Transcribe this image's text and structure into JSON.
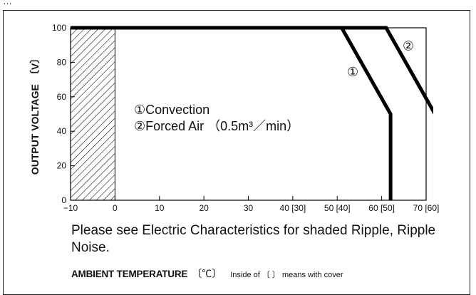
{
  "header_fragment": "…",
  "chart_data": {
    "type": "line",
    "ylabel": "OUTPUT VOLTAGE",
    "ylabel_unit": "〔V〕",
    "xlabel": "AMBIENT TEMPERATURE",
    "xlabel_unit": "〔℃〕",
    "xlabel_note": "Inside of 〔 〕 means with cover",
    "xlim": [
      -10,
      70
    ],
    "ylim": [
      0,
      100
    ],
    "grid": false,
    "x_tick_labels": [
      {
        "x": -10,
        "label": "−10"
      },
      {
        "x": 0,
        "label": "0"
      },
      {
        "x": 10,
        "label": "10"
      },
      {
        "x": 20,
        "label": "20"
      },
      {
        "x": 30,
        "label": "30"
      },
      {
        "x": 40,
        "label": "40 [30]"
      },
      {
        "x": 50,
        "label": "50 [40]"
      },
      {
        "x": 60,
        "label": "60 [50]"
      },
      {
        "x": 70,
        "label": "70 [60]"
      }
    ],
    "y_ticks": [
      0,
      20,
      40,
      60,
      80,
      100
    ],
    "series": [
      {
        "marker": "①",
        "name": "Convection",
        "x": [
          -10,
          51,
          62,
          62
        ],
        "y": [
          100,
          100,
          50,
          0
        ]
      },
      {
        "marker": "②",
        "name": "Forced Air",
        "name_suffix": "（0.5m³／min）",
        "x": [
          -10,
          61,
          72,
          72
        ],
        "y": [
          100,
          100,
          50,
          0
        ]
      }
    ],
    "shaded_region": {
      "x": [
        -10,
        0
      ],
      "y": [
        0,
        100
      ],
      "pattern": "diagonal-hatch"
    },
    "legend_position": "center-left",
    "colors": {
      "line": "#000000",
      "hatch": "#000000",
      "background": "#ffffff"
    }
  },
  "note": "Please see Electric Characteristics for shaded Ripple, Ripple Noise."
}
